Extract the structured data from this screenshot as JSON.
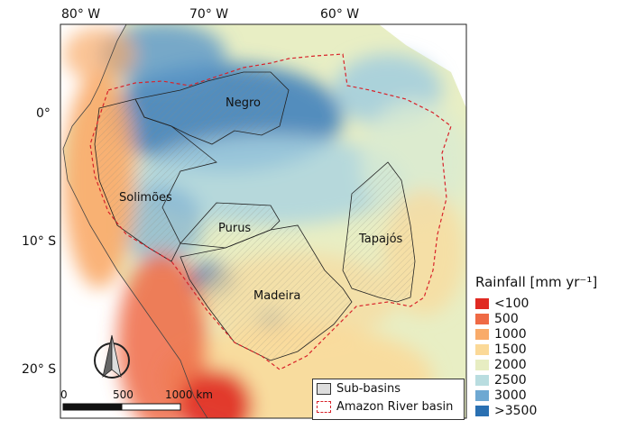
{
  "axes": {
    "lon_labels": [
      "80° W",
      "70° W",
      "60° W"
    ],
    "lat_labels": [
      "0°",
      "10° S",
      "20° S"
    ]
  },
  "basins": {
    "negro": "Negro",
    "solimoes": "Solimões",
    "purus": "Purus",
    "tapajos": "Tapajós",
    "madeira": "Madeira"
  },
  "rainfall_legend": {
    "title": "Rainfall [mm yr⁻¹]",
    "classes": [
      {
        "label": "<100",
        "color": "#e02a22"
      },
      {
        "label": "500",
        "color": "#ef6a45"
      },
      {
        "label": "1000",
        "color": "#f9ab6a"
      },
      {
        "label": "1500",
        "color": "#fbd998"
      },
      {
        "label": "2000",
        "color": "#e7edc2"
      },
      {
        "label": "2500",
        "color": "#b9dde0"
      },
      {
        "label": "3000",
        "color": "#6ea8d2"
      },
      {
        "label": ">3500",
        "color": "#2a70b2"
      }
    ]
  },
  "map_legend": {
    "sub_basins": "Sub-basins",
    "amazon_basin": "Amazon River basin"
  },
  "scale_bar": {
    "labels": [
      "0",
      "500",
      "1000 km"
    ]
  }
}
